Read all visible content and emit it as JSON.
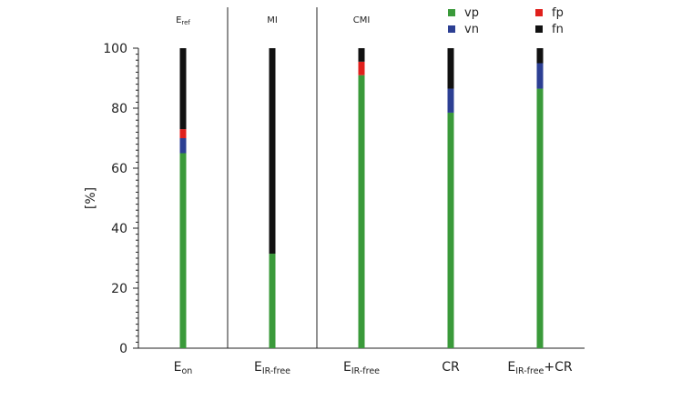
{
  "chart_data": {
    "type": "bar",
    "stacked": true,
    "ylabel": "[%]",
    "ylim": [
      0,
      100
    ],
    "yticks": [
      0,
      20,
      40,
      60,
      80,
      100
    ],
    "categories": [
      {
        "main": "E",
        "sub": "on",
        "suffix": ""
      },
      {
        "main": "E",
        "sub": "IR-free",
        "suffix": ""
      },
      {
        "main": "E",
        "sub": "IR-free",
        "suffix": ""
      },
      {
        "main": "CR",
        "sub": "",
        "suffix": ""
      },
      {
        "main": "E",
        "sub": "IR-free",
        "suffix": "+CR"
      }
    ],
    "group_labels": [
      {
        "main": "E",
        "sub": "ref"
      },
      {
        "main": "MI",
        "sub": ""
      },
      {
        "main": "CMI",
        "sub": ""
      }
    ],
    "series": [
      {
        "name": "vp",
        "color": "#3a9a3a",
        "values": [
          65,
          31.5,
          91,
          78.5,
          86.5
        ]
      },
      {
        "name": "vn",
        "color": "#2c3f93",
        "values": [
          5,
          0,
          0,
          8,
          8.5
        ]
      },
      {
        "name": "fp",
        "color": "#e0201c",
        "values": [
          3,
          0,
          4.5,
          0,
          0
        ]
      },
      {
        "name": "fn",
        "color": "#111111",
        "values": [
          27,
          68.5,
          4.5,
          13.5,
          5
        ]
      }
    ],
    "legend_position": "top-right",
    "grid": false
  }
}
